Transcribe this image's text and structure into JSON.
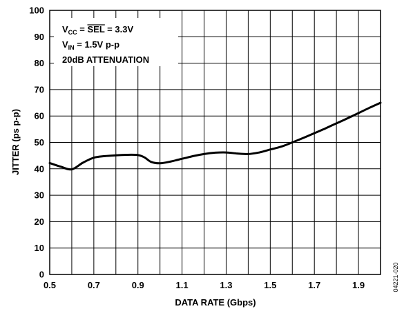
{
  "chart_data": {
    "type": "line",
    "xlabel": "DATA RATE (Gbps)",
    "ylabel": "JITTER (ps p-p)",
    "xlim": [
      0.5,
      2.0
    ],
    "ylim": [
      0,
      100
    ],
    "grid": true,
    "x_ticks": [
      "0.5",
      "0.7",
      "0.9",
      "1.1",
      "1.3",
      "1.5",
      "1.7",
      "1.9"
    ],
    "y_ticks": [
      "0",
      "10",
      "20",
      "30",
      "40",
      "50",
      "60",
      "70",
      "80",
      "90",
      "100"
    ],
    "annotations": {
      "line1_v": "V",
      "line1_sub": "CC",
      "line1_eq": " = ",
      "line1_sel": "SEL",
      "line1_val": " = 3.3V",
      "line2_v": "V",
      "line2_sub": "IN",
      "line2_val": " = 1.5V p-p",
      "line3": "20dB ATTENUATION"
    },
    "figure_code": "04221-020",
    "series": [
      {
        "x": [
          0.5,
          0.55,
          0.6,
          0.65,
          0.7,
          0.75,
          0.8,
          0.85,
          0.9,
          0.93,
          0.96,
          1.0,
          1.05,
          1.1,
          1.15,
          1.2,
          1.25,
          1.3,
          1.35,
          1.4,
          1.45,
          1.5,
          1.55,
          1.6,
          1.65,
          1.7,
          1.75,
          1.8,
          1.85,
          1.9,
          1.95,
          2.0
        ],
        "values": [
          42.2,
          40.8,
          39.8,
          42.3,
          44.2,
          44.8,
          45.1,
          45.3,
          45.2,
          44.3,
          42.6,
          42.1,
          42.8,
          43.8,
          44.8,
          45.6,
          46.1,
          46.2,
          45.8,
          45.6,
          46.2,
          47.3,
          48.4,
          50.0,
          51.7,
          53.5,
          55.3,
          57.2,
          59.1,
          61.1,
          63.1,
          65.0
        ]
      }
    ]
  }
}
